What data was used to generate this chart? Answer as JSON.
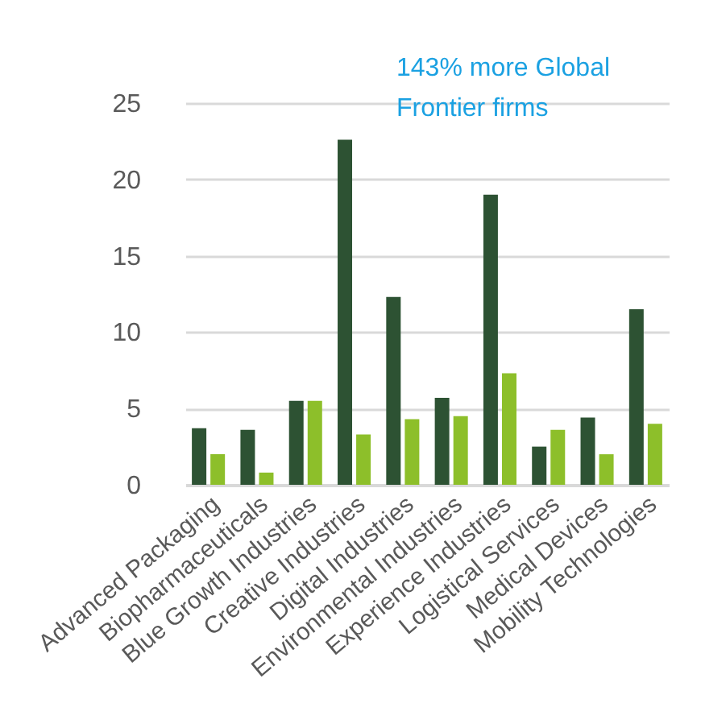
{
  "chart_data": {
    "type": "bar",
    "categories": [
      "Advanced Packaging",
      "Biopharmaceuticals",
      "Blue Growth Industries",
      "Creative Industries",
      "Digital Industries",
      "Environmental Industries",
      "Experience Industries",
      "Logistical Services",
      "Medical Devices",
      "Mobility Technologies"
    ],
    "series": [
      {
        "color": "#2d5233",
        "values": [
          3.7,
          3.6,
          5.5,
          22.6,
          12.3,
          5.7,
          19.0,
          2.5,
          4.4,
          11.5
        ]
      },
      {
        "color": "#8dbf2a",
        "values": [
          2.0,
          0.8,
          5.5,
          3.3,
          4.3,
          4.5,
          7.3,
          3.6,
          2.0,
          4.0
        ]
      }
    ],
    "ylim": [
      0,
      25
    ],
    "yticks": [
      0,
      5,
      10,
      15,
      20,
      25
    ],
    "grid": "y",
    "legend": false,
    "annotations": [
      "143% more Global Frontier firms"
    ]
  }
}
